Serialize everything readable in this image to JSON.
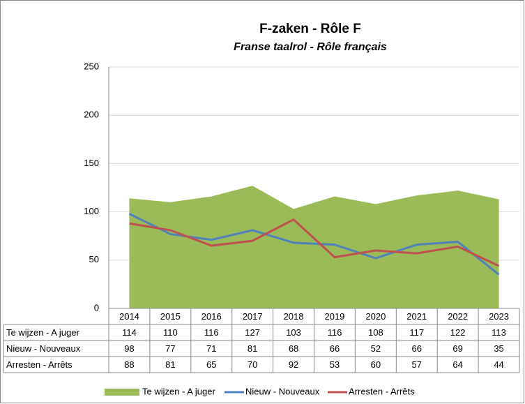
{
  "chart_data": {
    "type": "line",
    "title": "F-zaken - Rôle F",
    "subtitle": "Franse taalrol - Rôle français",
    "categories": [
      "2014",
      "2015",
      "2016",
      "2017",
      "2018",
      "2019",
      "2020",
      "2021",
      "2022",
      "2023"
    ],
    "series": [
      {
        "name": "Te wijzen - A juger",
        "color": "#9bbb59",
        "style": "area",
        "values": [
          114,
          110,
          116,
          127,
          103,
          116,
          108,
          117,
          122,
          113
        ]
      },
      {
        "name": "Nieuw - Nouveaux",
        "color": "#4f81bd",
        "style": "line",
        "values": [
          98,
          77,
          71,
          81,
          68,
          66,
          52,
          66,
          69,
          35
        ]
      },
      {
        "name": "Arresten - Arrêts",
        "color": "#c0504d",
        "style": "line",
        "values": [
          88,
          81,
          65,
          70,
          92,
          53,
          60,
          57,
          64,
          44
        ]
      }
    ],
    "ylim": [
      0,
      250
    ],
    "yticks": [
      0,
      50,
      100,
      150,
      200,
      250
    ],
    "grid": true,
    "legend": "bottom"
  }
}
